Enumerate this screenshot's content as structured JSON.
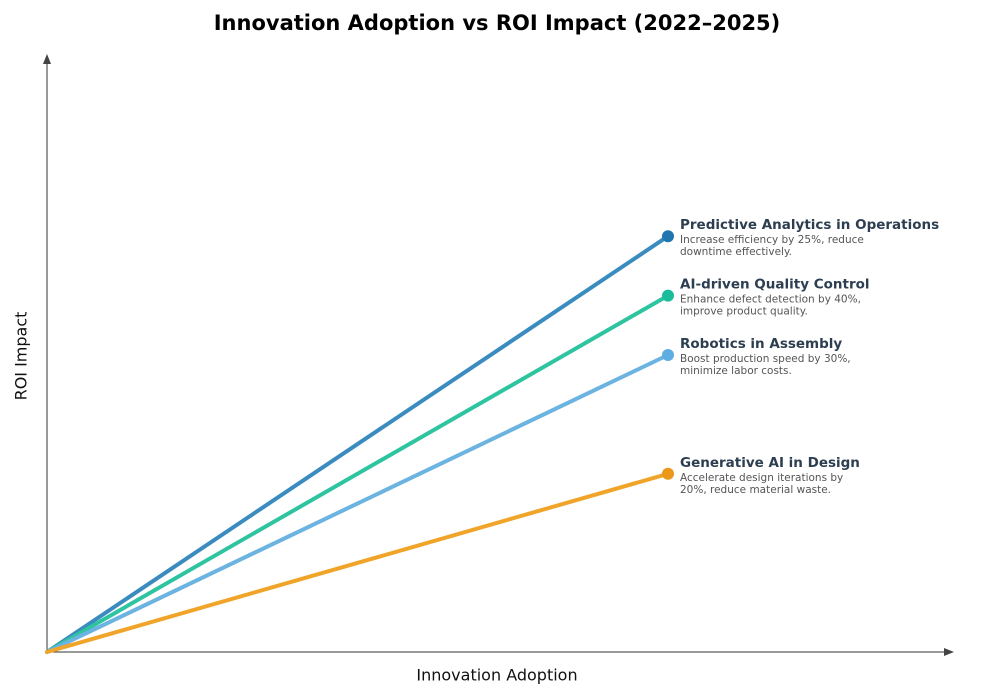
{
  "chart_data": {
    "type": "line",
    "title": "Innovation Adoption vs ROI Impact (2022–2025)",
    "x_label": "Innovation Adoption",
    "y_label": "ROI Impact",
    "xlim": [
      0,
      1
    ],
    "ylim": [
      0,
      1
    ],
    "series": [
      {
        "name": "Predictive Analytics in Operations",
        "color": "#3a8bbf",
        "marker_color": "#2176ae",
        "description": [
          "Increase efficiency by 25%, reduce",
          "downtime effectively."
        ],
        "x": [
          0,
          0.69
        ],
        "values": [
          0,
          0.7
        ]
      },
      {
        "name": "AI-driven Quality Control",
        "color": "#2ec4a0",
        "marker_color": "#1abc9c",
        "description": [
          "Enhance defect detection by 40%,",
          "improve product quality."
        ],
        "x": [
          0,
          0.69
        ],
        "values": [
          0,
          0.6
        ]
      },
      {
        "name": "Robotics in Assembly",
        "color": "#6bb3e0",
        "marker_color": "#5dade2",
        "description": [
          "Boost production speed by 30%,",
          "minimize labor costs."
        ],
        "x": [
          0,
          0.69
        ],
        "values": [
          0,
          0.5
        ]
      },
      {
        "name": "Generative AI in Design",
        "color": "#f0a52a",
        "marker_color": "#eb981a",
        "description": [
          "Accelerate design iterations by",
          "20%, reduce material waste."
        ],
        "x": [
          0,
          0.69
        ],
        "values": [
          0,
          0.3
        ]
      }
    ]
  }
}
